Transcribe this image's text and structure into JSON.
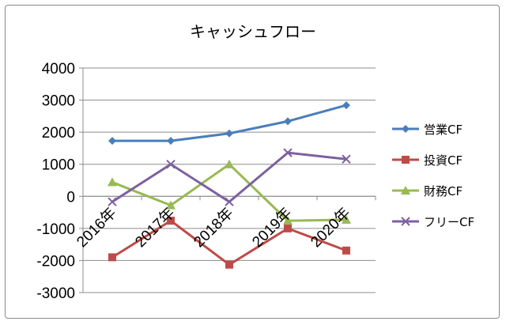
{
  "chart_data": {
    "type": "line",
    "title": "キャッシュフロー",
    "categories": [
      "2016年",
      "2017年",
      "2018年",
      "2019年",
      "2020年"
    ],
    "ylim": [
      -3000,
      4000
    ],
    "yticks": [
      4000,
      3000,
      2000,
      1000,
      0,
      -1000,
      -2000,
      -3000
    ],
    "grid": true,
    "legend_position": "right",
    "series": [
      {
        "name": "営業CF",
        "values": [
          1730,
          1730,
          1960,
          2340,
          2840
        ],
        "color": "#4a7ebb",
        "marker": "diamond"
      },
      {
        "name": "投資CF",
        "values": [
          -1900,
          -760,
          -2130,
          -1000,
          -1690
        ],
        "color": "#be4b48",
        "marker": "square"
      },
      {
        "name": "財務CF",
        "values": [
          440,
          -280,
          1000,
          -760,
          -730
        ],
        "color": "#98b954",
        "marker": "triangle"
      },
      {
        "name": "フリーCF",
        "values": [
          -170,
          1000,
          -170,
          1360,
          1160
        ],
        "color": "#7d60a0",
        "marker": "x"
      }
    ]
  }
}
